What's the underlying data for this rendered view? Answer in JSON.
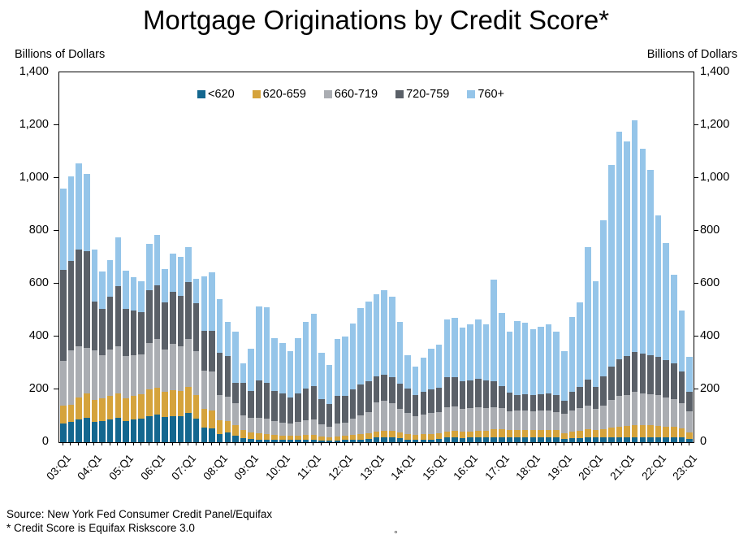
{
  "title": "Mortgage Originations by Credit Score*",
  "y_axis_label_left": "Billions of Dollars",
  "y_axis_label_right": "Billions of Dollars",
  "source_line1": "Source: New York Fed Consumer Credit Panel/Equifax",
  "source_line2": "* Credit Score is Equifax Riskscore 3.0",
  "stray_mark": "°",
  "chart_data": {
    "type": "bar",
    "stacked": true,
    "grid": false,
    "legend_position": "top-center",
    "ylim": [
      0,
      1400
    ],
    "y_tick_step": 200,
    "y_tick_labels": [
      "0",
      "200",
      "400",
      "600",
      "800",
      "1,000",
      "1,200",
      "1,400"
    ],
    "x_year_tick_labels": [
      "03:Q1",
      "04:Q1",
      "05:Q1",
      "06:Q1",
      "07:Q1",
      "08:Q1",
      "09:Q1",
      "10:Q1",
      "11:Q1",
      "12:Q1",
      "13:Q1",
      "14:Q1",
      "15:Q1",
      "16:Q1",
      "17:Q1",
      "18:Q1",
      "19:Q1",
      "20:Q1",
      "21:Q1",
      "22:Q1",
      "23:Q1"
    ],
    "categories": [
      "03:Q1",
      "03:Q2",
      "03:Q3",
      "03:Q4",
      "04:Q1",
      "04:Q2",
      "04:Q3",
      "04:Q4",
      "05:Q1",
      "05:Q2",
      "05:Q3",
      "05:Q4",
      "06:Q1",
      "06:Q2",
      "06:Q3",
      "06:Q4",
      "07:Q1",
      "07:Q2",
      "07:Q3",
      "07:Q4",
      "08:Q1",
      "08:Q2",
      "08:Q3",
      "08:Q4",
      "09:Q1",
      "09:Q2",
      "09:Q3",
      "09:Q4",
      "10:Q1",
      "10:Q2",
      "10:Q3",
      "10:Q4",
      "11:Q1",
      "11:Q2",
      "11:Q3",
      "11:Q4",
      "12:Q1",
      "12:Q2",
      "12:Q3",
      "12:Q4",
      "13:Q1",
      "13:Q2",
      "13:Q3",
      "13:Q4",
      "14:Q1",
      "14:Q2",
      "14:Q3",
      "14:Q4",
      "15:Q1",
      "15:Q2",
      "15:Q3",
      "15:Q4",
      "16:Q1",
      "16:Q2",
      "16:Q3",
      "16:Q4",
      "17:Q1",
      "17:Q2",
      "17:Q3",
      "17:Q4",
      "18:Q1",
      "18:Q2",
      "18:Q3",
      "18:Q4",
      "19:Q1",
      "19:Q2",
      "19:Q3",
      "19:Q4",
      "20:Q1",
      "20:Q2",
      "20:Q3",
      "20:Q4",
      "21:Q1",
      "21:Q2",
      "21:Q3",
      "21:Q4",
      "22:Q1",
      "22:Q2",
      "22:Q3",
      "22:Q4",
      "23:Q1"
    ],
    "series": [
      {
        "name": "<620",
        "color": "#14678f",
        "values": [
          72,
          77,
          87,
          92,
          77,
          80,
          85,
          92,
          80,
          85,
          90,
          100,
          105,
          95,
          100,
          98,
          110,
          90,
          55,
          51,
          31,
          36,
          26,
          16,
          12,
          10,
          10,
          9,
          8,
          8,
          8,
          9,
          9,
          7,
          6,
          7,
          8,
          9,
          10,
          11,
          18,
          19,
          18,
          15,
          8,
          8,
          9,
          10,
          11,
          18,
          18,
          16,
          17,
          18,
          17,
          18,
          18,
          17,
          18,
          18,
          17,
          18,
          18,
          17,
          12,
          15,
          16,
          18,
          17,
          18,
          20,
          20,
          20,
          20,
          20,
          20,
          20,
          20,
          20,
          18,
          13
        ]
      },
      {
        "name": "620-659",
        "color": "#d5a33c",
        "values": [
          67,
          66,
          82,
          92,
          84,
          85,
          90,
          93,
          85,
          90,
          92,
          100,
          100,
          95,
          98,
          95,
          100,
          90,
          70,
          69,
          51,
          45,
          40,
          30,
          24,
          23,
          22,
          20,
          18,
          17,
          18,
          20,
          20,
          16,
          14,
          16,
          17,
          20,
          22,
          24,
          23,
          25,
          24,
          22,
          23,
          20,
          21,
          22,
          22,
          23,
          24,
          23,
          24,
          25,
          25,
          31,
          30,
          28,
          28,
          28,
          28,
          28,
          29,
          28,
          22,
          26,
          28,
          31,
          28,
          30,
          35,
          40,
          42,
          46,
          45,
          44,
          42,
          40,
          38,
          34,
          25
        ]
      },
      {
        "name": "660-719",
        "color": "#aaadb2",
        "values": [
          169,
          205,
          195,
          174,
          188,
          165,
          175,
          179,
          160,
          155,
          150,
          175,
          185,
          160,
          175,
          170,
          180,
          165,
          146,
          148,
          97,
          91,
          83,
          56,
          56,
          60,
          58,
          50,
          48,
          45,
          50,
          55,
          58,
          45,
          40,
          48,
          50,
          60,
          70,
          78,
          110,
          112,
          105,
          90,
          80,
          70,
          75,
          80,
          82,
          92,
          92,
          88,
          88,
          90,
          88,
          84,
          80,
          72,
          74,
          74,
          72,
          73,
          74,
          70,
          73,
          80,
          84,
          89,
          80,
          90,
          105,
          115,
          118,
          124,
          120,
          118,
          115,
          110,
          105,
          95,
          78
        ]
      },
      {
        "name": "720-759",
        "color": "#5a6068",
        "values": [
          343,
          339,
          364,
          366,
          184,
          175,
          200,
          226,
          180,
          170,
          160,
          200,
          205,
          180,
          195,
          190,
          215,
          180,
          151,
          155,
          159,
          153,
          77,
          123,
          103,
          140,
          135,
          115,
          110,
          100,
          110,
          120,
          125,
          95,
          85,
          105,
          100,
          110,
          115,
          118,
          97,
          100,
          98,
          95,
          92,
          80,
          85,
          88,
          90,
          113,
          112,
          105,
          106,
          108,
          105,
          98,
          85,
          70,
          59,
          62,
          62,
          63,
          64,
          62,
          49,
          70,
          80,
          100,
          85,
          110,
          125,
          140,
          145,
          153,
          150,
          148,
          145,
          140,
          135,
          120,
          74
        ]
      },
      {
        "name": "760+",
        "color": "#95c5e9",
        "values": [
          309,
          318,
          328,
          291,
          195,
          140,
          140,
          185,
          143,
          125,
          116,
          175,
          190,
          126,
          145,
          149,
          135,
          95,
          205,
          220,
          205,
          131,
          194,
          72,
          158,
          282,
          285,
          201,
          191,
          175,
          209,
          251,
          273,
          175,
          147,
          214,
          225,
          251,
          291,
          302,
          312,
          319,
          305,
          233,
          127,
          107,
          130,
          155,
          165,
          219,
          224,
          203,
          210,
          224,
          210,
          384,
          277,
          233,
          278,
          270,
          249,
          255,
          260,
          241,
          188,
          283,
          320,
          502,
          400,
          592,
          764,
          860,
          815,
          877,
          775,
          700,
          538,
          445,
          335,
          231,
          134
        ]
      }
    ]
  }
}
